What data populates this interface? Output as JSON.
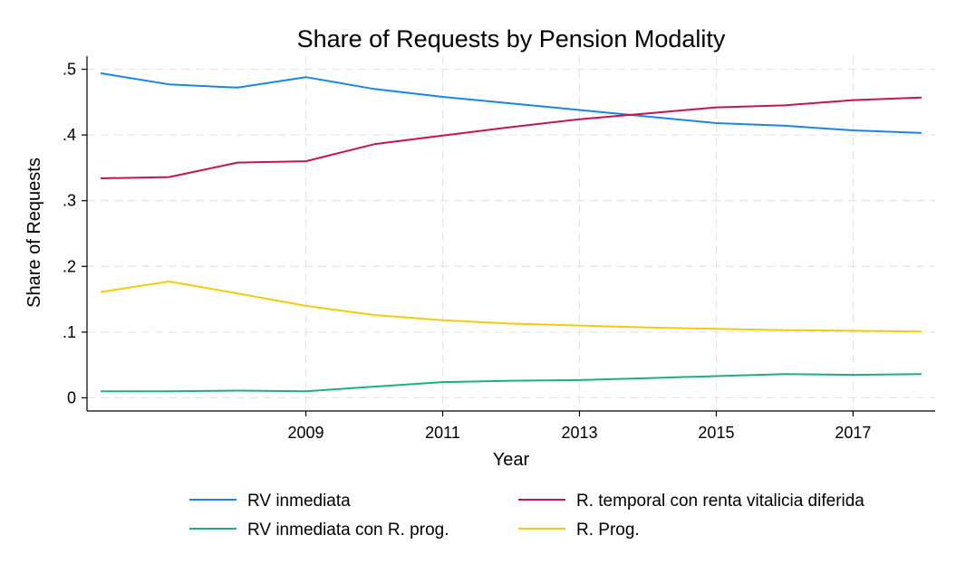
{
  "chart_data": {
    "type": "line",
    "title": "Share of Requests by Pension Modality",
    "xlabel": "Year",
    "ylabel": "Share of Requests",
    "x": [
      2006,
      2007,
      2008,
      2009,
      2010,
      2011,
      2012,
      2013,
      2014,
      2015,
      2016,
      2017,
      2018
    ],
    "xlim": [
      2005.8,
      2018.2
    ],
    "ylim": [
      -0.02,
      0.52
    ],
    "xticks": [
      2009,
      2011,
      2013,
      2015,
      2017
    ],
    "xtick_labels": [
      "2009",
      "2011",
      "2013",
      "2015",
      "2017"
    ],
    "yticks": [
      0,
      0.1,
      0.2,
      0.3,
      0.4,
      0.5
    ],
    "ytick_labels": [
      "0",
      ".1",
      ".2",
      ".3",
      ".4",
      ".5"
    ],
    "grid": true,
    "legend_position": "bottom",
    "series": [
      {
        "name": "RV inmediata",
        "color": "#1a85e8",
        "values": [
          0.494,
          0.477,
          0.472,
          0.488,
          0.47,
          0.458,
          0.448,
          0.438,
          0.428,
          0.418,
          0.414,
          0.407,
          0.403
        ]
      },
      {
        "name": "R. temporal con renta vitalicia diferida",
        "color": "#c8124f",
        "values": [
          0.334,
          0.336,
          0.358,
          0.36,
          0.386,
          0.399,
          0.412,
          0.424,
          0.433,
          0.442,
          0.445,
          0.453,
          0.457
        ]
      },
      {
        "name": "RV inmediata con R. prog.",
        "color": "#19b37a",
        "values": [
          0.01,
          0.01,
          0.011,
          0.01,
          0.017,
          0.024,
          0.026,
          0.027,
          0.03,
          0.033,
          0.036,
          0.035,
          0.036
        ]
      },
      {
        "name": "R. Prog.",
        "color": "#f2cc0c",
        "values": [
          0.161,
          0.177,
          0.159,
          0.14,
          0.126,
          0.118,
          0.113,
          0.11,
          0.107,
          0.105,
          0.103,
          0.102,
          0.101
        ]
      }
    ]
  }
}
